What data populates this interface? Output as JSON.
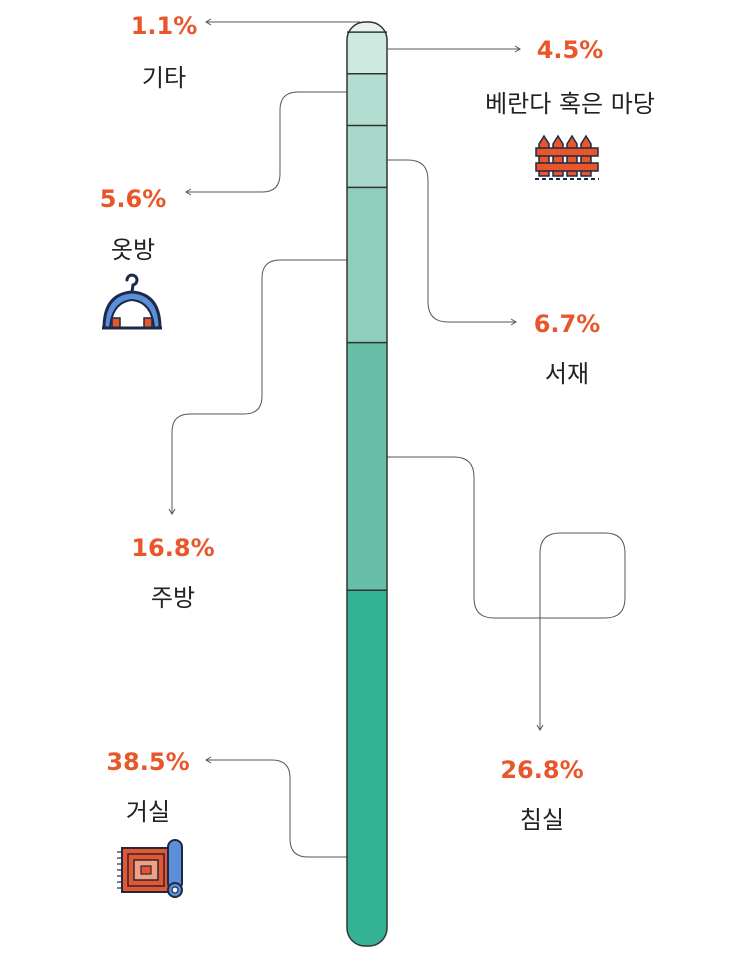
{
  "chart_data": {
    "type": "bar",
    "orientation": "vertical-stacked",
    "unit": "%",
    "segments": [
      {
        "name": "기타",
        "value": 1.1,
        "label": "1.1%",
        "color": "#e6f3ef"
      },
      {
        "name": "베란다 혹은 마당",
        "value": 4.5,
        "label": "4.5%",
        "color": "#cde9e0",
        "icon": "fence-icon"
      },
      {
        "name": "옷방",
        "value": 5.6,
        "label": "5.6%",
        "color": "#b2ddd0",
        "icon": "hanger-icon"
      },
      {
        "name": "서재",
        "value": 6.7,
        "label": "6.7%",
        "color": "#a7d8c9"
      },
      {
        "name": "주방",
        "value": 16.8,
        "label": "16.8%",
        "color": "#8ecebb"
      },
      {
        "name": "침실",
        "value": 26.8,
        "label": "26.8%",
        "color": "#66bfa6"
      },
      {
        "name": "거실",
        "value": 38.5,
        "label": "38.5%",
        "color": "#33b394",
        "icon": "rug-icon"
      }
    ]
  },
  "style": {
    "accent": "#e8562a",
    "text": "#222222",
    "divider": "#333333",
    "connector": "#555555",
    "icon_dark": "#1c2a4a",
    "icon_blue": "#5b8fd8"
  }
}
